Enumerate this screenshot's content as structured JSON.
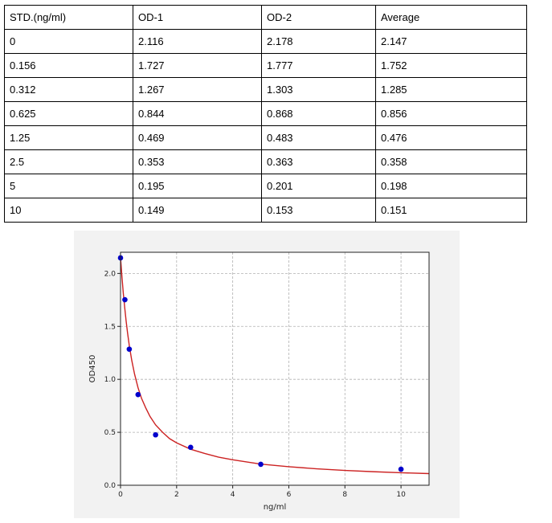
{
  "table": {
    "headers": [
      "STD.(ng/ml)",
      "OD-1",
      "OD-2",
      "Average"
    ],
    "rows": [
      [
        "0",
        "2.116",
        "2.178",
        "2.147"
      ],
      [
        "0.156",
        "1.727",
        "1.777",
        "1.752"
      ],
      [
        "0.312",
        "1.267",
        "1.303",
        "1.285"
      ],
      [
        "0.625",
        "0.844",
        "0.868",
        "0.856"
      ],
      [
        "1.25",
        "0.469",
        "0.483",
        "0.476"
      ],
      [
        "2.5",
        "0.353",
        "0.363",
        "0.358"
      ],
      [
        "5",
        "0.195",
        "0.201",
        "0.198"
      ],
      [
        "10",
        "0.149",
        "0.153",
        "0.151"
      ]
    ]
  },
  "chart_data": {
    "type": "scatter",
    "xlabel": "ng/ml",
    "ylabel": "OD450",
    "xlim": [
      0,
      11
    ],
    "ylim": [
      0,
      2.2
    ],
    "xticks": [
      0,
      2,
      4,
      6,
      8,
      10
    ],
    "yticks": [
      0.0,
      0.5,
      1.0,
      1.5,
      2.0
    ],
    "xtick_labels": [
      "0",
      "2",
      "4",
      "6",
      "8",
      "10"
    ],
    "ytick_labels": [
      "0.0",
      "0.5",
      "1.0",
      "1.5",
      "2.0"
    ],
    "grid": true,
    "colors": {
      "points": "#0000cc",
      "curve": "#cc2222",
      "grid": "#b0b0b0"
    },
    "points": {
      "x": [
        0,
        0.156,
        0.312,
        0.625,
        1.25,
        2.5,
        5,
        10
      ],
      "y": [
        2.147,
        1.752,
        1.285,
        0.856,
        0.476,
        0.358,
        0.198,
        0.151
      ]
    },
    "fit_curve": {
      "x": [
        0,
        0.05,
        0.1,
        0.156,
        0.2,
        0.25,
        0.312,
        0.4,
        0.5,
        0.625,
        0.75,
        0.9,
        1.05,
        1.25,
        1.5,
        1.75,
        2.0,
        2.5,
        3.0,
        3.5,
        4.0,
        5.0,
        6.0,
        7.0,
        8.0,
        9.0,
        10.0,
        11.0
      ],
      "y": [
        2.15,
        1.97,
        1.81,
        1.66,
        1.55,
        1.44,
        1.32,
        1.18,
        1.05,
        0.92,
        0.82,
        0.73,
        0.65,
        0.57,
        0.5,
        0.44,
        0.4,
        0.34,
        0.3,
        0.265,
        0.24,
        0.2,
        0.175,
        0.155,
        0.14,
        0.128,
        0.118,
        0.11
      ]
    }
  }
}
